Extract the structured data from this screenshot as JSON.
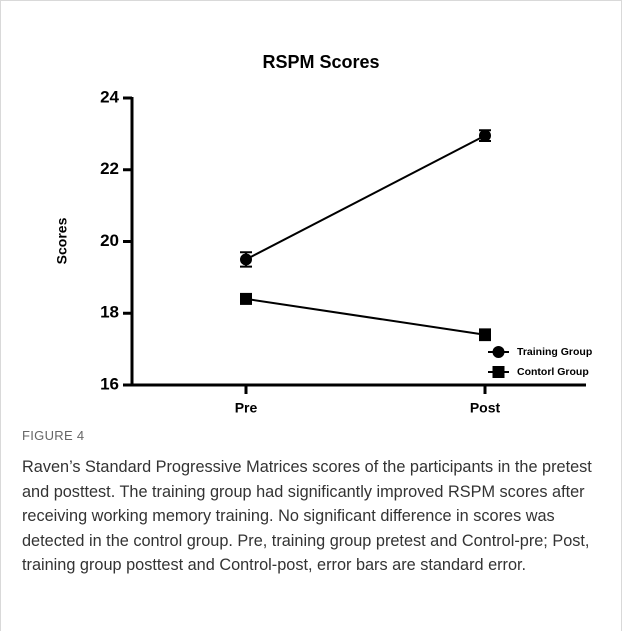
{
  "chart_data": {
    "type": "line",
    "title": "RSPM Scores",
    "y_label": "Scores",
    "categories": [
      "Pre",
      "Post"
    ],
    "series": [
      {
        "name": "Training Group",
        "color": "#000000",
        "marker": "circle",
        "values": [
          19.5,
          22.95
        ],
        "errors": [
          0.2,
          0.15
        ]
      },
      {
        "name": "Contorl Group",
        "color": "#000000",
        "marker": "square",
        "values": [
          18.4,
          17.4
        ],
        "errors": [
          0.1,
          0.15
        ]
      }
    ],
    "ylim": [
      16,
      24
    ],
    "yticks": [
      16,
      18,
      20,
      22,
      24
    ],
    "legend": "lower right"
  },
  "caption": {
    "label": "FIGURE 4",
    "text": "Raven’s Standard Progressive Matrices scores of the participants in the pretest and posttest. The training group had significantly improved RSPM scores after receiving working memory training. No significant difference in scores was detected in the control group. Pre, training group pretest and Control-pre; Post, training group posttest and Control-post, error bars are standard error."
  }
}
